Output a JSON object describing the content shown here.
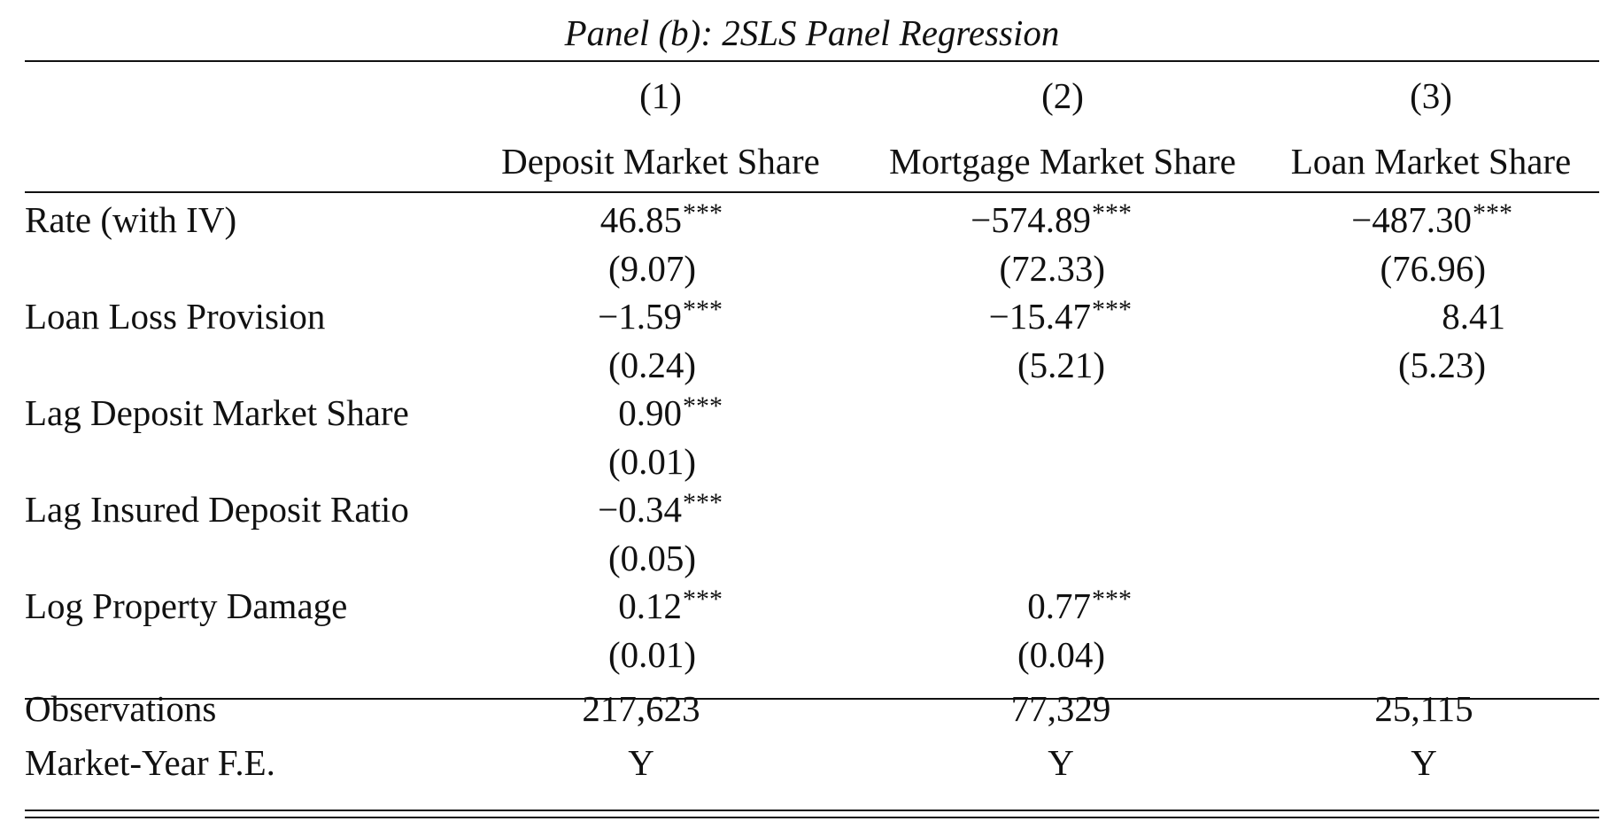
{
  "panel_title": "Panel (b): 2SLS Panel Regression",
  "columns": [
    {
      "number": "(1)",
      "dependent": "Deposit Market Share"
    },
    {
      "number": "(2)",
      "dependent": "Mortgage Market Share"
    },
    {
      "number": "(3)",
      "dependent": "Loan Market Share"
    }
  ],
  "rows": [
    {
      "label": "Rate (with IV)",
      "coef": [
        "46.85",
        "−574.89",
        "−487.30"
      ],
      "stars": [
        "***",
        "***",
        "***"
      ],
      "se": [
        "(9.07)",
        "(72.33)",
        "(76.96)"
      ]
    },
    {
      "label": "Loan Loss Provision",
      "coef": [
        "−1.59",
        "−15.47",
        "8.41"
      ],
      "stars": [
        "***",
        "***",
        ""
      ],
      "se": [
        "(0.24)",
        "(5.21)",
        "(5.23)"
      ]
    },
    {
      "label": "Lag Deposit Market Share",
      "coef": [
        "0.90",
        "",
        ""
      ],
      "stars": [
        "***",
        "",
        ""
      ],
      "se": [
        "(0.01)",
        "",
        ""
      ]
    },
    {
      "label": "Lag Insured Deposit Ratio",
      "coef": [
        "−0.34",
        "",
        ""
      ],
      "stars": [
        "***",
        "",
        ""
      ],
      "se": [
        "(0.05)",
        "",
        ""
      ]
    },
    {
      "label": "Log Property Damage",
      "coef": [
        "0.12",
        "0.77",
        ""
      ],
      "stars": [
        "***",
        "***",
        ""
      ],
      "se": [
        "(0.01)",
        "(0.04)",
        ""
      ]
    }
  ],
  "footer": [
    {
      "label": "Observations",
      "values": [
        "217,623",
        "77,329",
        "25,115"
      ]
    },
    {
      "label": "Market-Year F.E.",
      "values": [
        "Y",
        "Y",
        "Y"
      ]
    }
  ]
}
